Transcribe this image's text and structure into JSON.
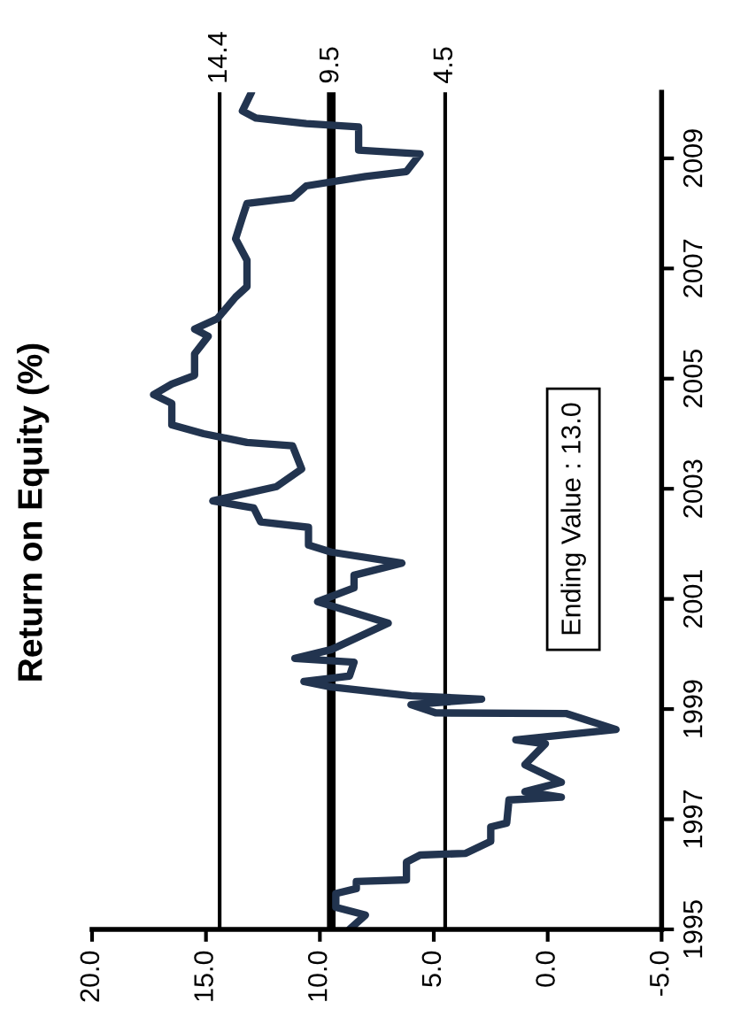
{
  "chart_data": {
    "type": "line",
    "title": "Return on Equity (%)",
    "x": [
      8.7,
      8.0,
      9.3,
      9.3,
      8.4,
      8.4,
      6.2,
      6.2,
      5.6,
      3.6,
      2.5,
      2.5,
      1.8,
      1.7,
      -0.6,
      1.0,
      -0.6,
      1.0,
      0.1,
      1.4,
      -3.0,
      -0.8,
      4.9,
      6.0,
      2.9,
      6.0,
      9.5,
      10.7,
      8.7,
      8.5,
      11.1,
      9.5,
      7.0,
      10.1,
      8.5,
      8.5,
      6.4,
      9.5,
      10.5,
      10.5,
      12.6,
      12.9,
      14.7,
      11.9,
      10.8,
      11.2,
      13.2,
      15.1,
      16.5,
      16.5,
      17.3,
      16.5,
      15.5,
      15.5,
      14.9,
      15.5,
      14.5,
      13.7,
      13.2,
      13.2,
      13.7,
      13.4,
      13.2,
      11.2,
      10.6,
      8.0,
      6.2,
      5.6,
      8.3,
      8.3,
      10.6,
      12.8,
      13.4,
      13.0
    ],
    "series": [
      {
        "color": "#22344f",
        "values": [
          1995.0,
          1995.26,
          1995.4,
          1995.65,
          1995.74,
          1995.87,
          1995.9,
          1996.22,
          1996.35,
          1996.38,
          1996.6,
          1996.86,
          1996.93,
          1997.35,
          1997.4,
          1997.5,
          1997.67,
          1997.99,
          1998.37,
          1998.44,
          1998.63,
          1998.92,
          1998.93,
          1999.08,
          1999.18,
          1999.24,
          1999.4,
          1999.5,
          1999.6,
          1999.85,
          1999.92,
          2000.08,
          2000.56,
          2000.95,
          2001.2,
          2001.43,
          2001.65,
          2001.85,
          2001.98,
          2002.3,
          2002.4,
          2002.65,
          2002.78,
          2003.04,
          2003.36,
          2003.78,
          2003.84,
          2004.0,
          2004.16,
          2004.55,
          2004.71,
          2004.9,
          2005.06,
          2005.45,
          2005.77,
          2005.9,
          2006.09,
          2006.48,
          2006.67,
          2007.15,
          2007.54,
          2007.93,
          2008.18,
          2008.28,
          2008.5,
          2008.67,
          2008.76,
          2009.08,
          2009.15,
          2009.57,
          2009.63,
          2009.73,
          2009.86,
          2010.2
        ]
      }
    ],
    "ylim": [
      1995,
      2010.2
    ],
    "yticks": [
      1995,
      1997,
      1999,
      2001,
      2003,
      2005,
      2007,
      2009
    ],
    "xlim": [
      20,
      -5
    ],
    "xticks": [
      {
        "value": -5,
        "label": "-5.0"
      },
      {
        "value": 0,
        "label": "0.0"
      },
      {
        "value": 5,
        "label": "5.0"
      },
      {
        "value": 10,
        "label": "10.0"
      },
      {
        "value": 15,
        "label": "15.0"
      },
      {
        "value": 20,
        "label": "20.0"
      }
    ],
    "ref_lines": [
      {
        "axis": "x",
        "value": 14.4,
        "label": "14.4",
        "color": "#000000"
      },
      {
        "axis": "x",
        "value": 9.5,
        "label": "9.5",
        "color": "#000000"
      },
      {
        "axis": "x",
        "value": 4.5,
        "label": "4.5",
        "color": "#000000"
      }
    ],
    "annotations": [
      "Ending Value : 13.0"
    ],
    "grid": false,
    "legend": false
  }
}
